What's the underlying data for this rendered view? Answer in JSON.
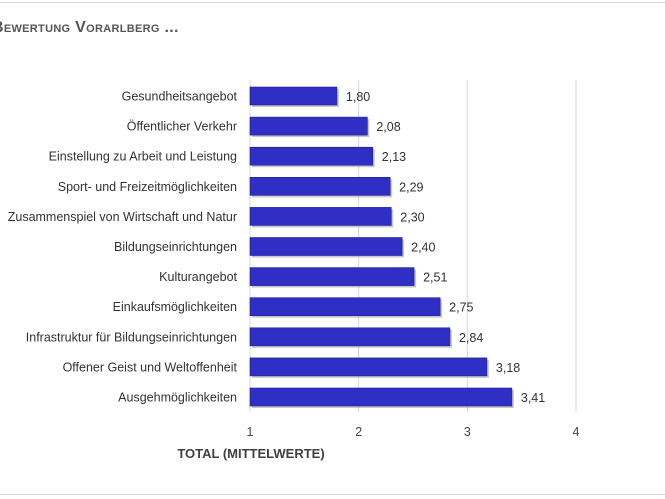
{
  "title": "Bewertung Vorarlberg ...",
  "title_visible": "EWERTUNG VORARLBERG ...",
  "colors": {
    "bar": "#2f2fc6",
    "bar_dark": "#1f1f8f",
    "grid": "#d9d9d9",
    "text": "#333333"
  },
  "chart_data": {
    "type": "bar",
    "orientation": "horizontal",
    "categories": [
      "Gesundheitsangebot",
      "Öffentlicher Verkehr",
      "Einstellung zu Arbeit und Leistung",
      "Sport- und Freizeitmöglichkeiten",
      "Zusammenspiel von Wirtschaft und Natur",
      "Bildungseinrichtungen",
      "Kulturangebot",
      "Einkaufsmöglichkeiten",
      "Infrastruktur für Bildungseinrichtungen",
      "Offener Geist und Weltoffenheit",
      "Ausgehmöglichkeiten"
    ],
    "values": [
      1.8,
      2.08,
      2.13,
      2.29,
      2.3,
      2.4,
      2.51,
      2.75,
      2.84,
      3.18,
      3.41
    ],
    "value_labels": [
      "1,80",
      "2,08",
      "2,13",
      "2,29",
      "2,30",
      "2,40",
      "2,51",
      "2,75",
      "2,84",
      "3,18",
      "3,41"
    ],
    "xlim": [
      1,
      4
    ],
    "xticks": [
      1,
      2,
      3,
      4
    ],
    "xtick_labels": [
      "1",
      "2",
      "3",
      "4"
    ],
    "xlabel": "TOTAL (MITTELWERTE)",
    "ylabel": "",
    "grid": true,
    "legend": "none"
  }
}
